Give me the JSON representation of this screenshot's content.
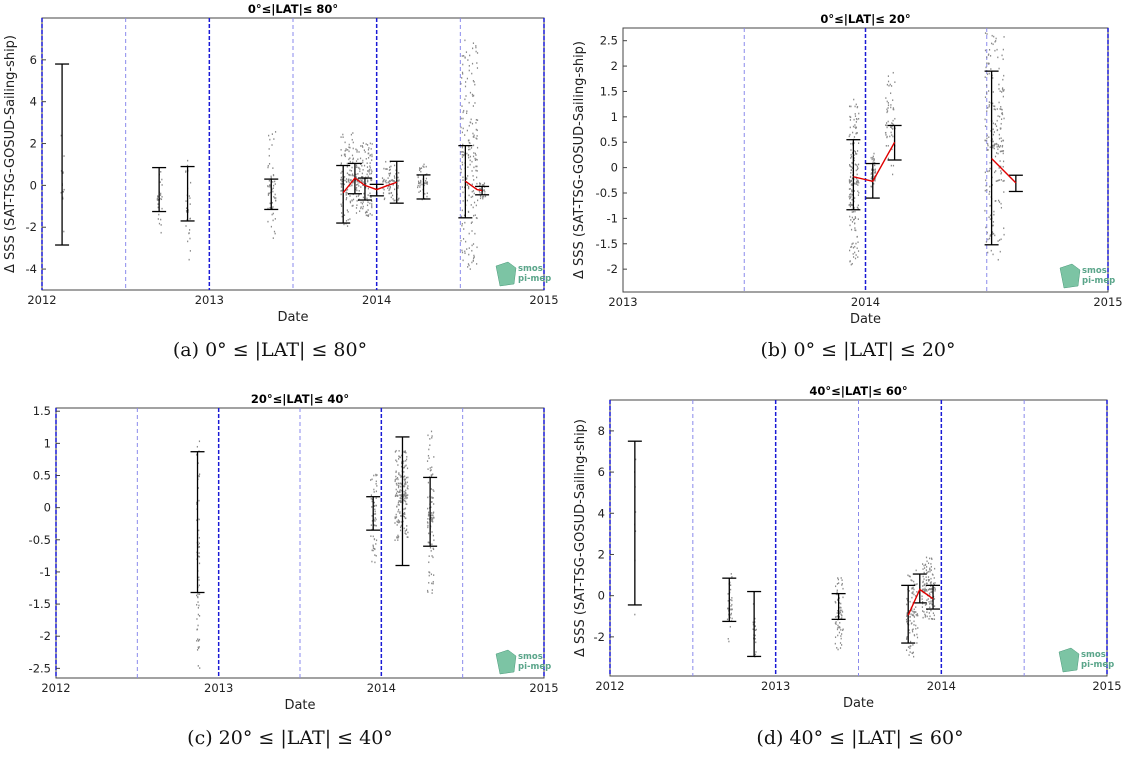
{
  "logo": {
    "line1": "smos",
    "line2": "pi-mep"
  },
  "colors": {
    "errorbar": "#000000",
    "mean_line": "#e00000",
    "year_line": "#1a1ad6",
    "half_year_line": "#8a8aec",
    "scatter": "#8a8a8a",
    "dashed_box": "#3a3ae0"
  },
  "chart_data": [
    {
      "panel": "a",
      "type": "scatter",
      "title": "0°≤|LAT|≤ 80°",
      "caption": "(a) 0° ≤ |LAT| ≤ 80°",
      "xlabel": "Date",
      "ylabel": "Δ SSS (SAT-TSG-GOSUD-Sailing-ship)",
      "xlim": [
        2012.0,
        2015.0
      ],
      "ylim": [
        -5.0,
        8.0
      ],
      "xticks": [
        2012,
        2013,
        2014,
        2015
      ],
      "yticks": [
        -4,
        -2,
        0,
        2,
        4,
        6
      ],
      "year_lines": [
        2013,
        2014,
        2015
      ],
      "half_year_lines": [
        2012.5,
        2013.5,
        2014.5
      ],
      "errorbars": [
        {
          "x": 2012.12,
          "low": -2.85,
          "high": 5.8
        },
        {
          "x": 2012.7,
          "low": -1.25,
          "high": 0.85
        },
        {
          "x": 2012.87,
          "low": -1.7,
          "high": 0.9
        },
        {
          "x": 2013.37,
          "low": -1.15,
          "high": 0.3
        },
        {
          "x": 2013.8,
          "low": -1.8,
          "high": 0.95
        },
        {
          "x": 2013.87,
          "low": -0.4,
          "high": 1.05
        },
        {
          "x": 2013.93,
          "low": -0.7,
          "high": 0.35
        },
        {
          "x": 2014.0,
          "low": -0.5,
          "high": 0.05
        },
        {
          "x": 2014.12,
          "low": -0.85,
          "high": 1.15
        },
        {
          "x": 2014.28,
          "low": -0.65,
          "high": 0.5
        },
        {
          "x": 2014.53,
          "low": -1.55,
          "high": 1.9
        },
        {
          "x": 2014.63,
          "low": -0.45,
          "high": -0.05
        }
      ],
      "mean_line": [
        [
          2013.8,
          -0.35
        ],
        [
          2013.87,
          0.35
        ],
        [
          2013.93,
          0.0
        ],
        [
          2014.0,
          -0.2
        ],
        [
          2014.05,
          -0.05
        ],
        [
          2014.12,
          0.15
        ]
      ],
      "mean_line2": [
        [
          2014.53,
          0.2
        ],
        [
          2014.6,
          -0.2
        ],
        [
          2014.63,
          -0.25
        ]
      ],
      "scatter_clusters": [
        {
          "x": 2012.12,
          "spread": 0.01,
          "low": -2.7,
          "high": 2.9,
          "n": 14
        },
        {
          "x": 2012.7,
          "spread": 0.015,
          "low": -2.3,
          "high": 1.0,
          "n": 30
        },
        {
          "x": 2012.87,
          "spread": 0.015,
          "low": -3.6,
          "high": 1.3,
          "n": 30
        },
        {
          "x": 2013.37,
          "spread": 0.025,
          "low": -2.7,
          "high": 2.8,
          "n": 60
        },
        {
          "x": 2013.82,
          "spread": 0.04,
          "low": -2.0,
          "high": 2.6,
          "n": 120
        },
        {
          "x": 2013.92,
          "spread": 0.05,
          "low": -1.5,
          "high": 2.1,
          "n": 160
        },
        {
          "x": 2014.08,
          "spread": 0.05,
          "low": -0.7,
          "high": 1.2,
          "n": 80
        },
        {
          "x": 2014.27,
          "spread": 0.03,
          "low": -0.8,
          "high": 1.1,
          "n": 50
        },
        {
          "x": 2014.55,
          "spread": 0.05,
          "low": -4.0,
          "high": 7.0,
          "n": 200
        },
        {
          "x": 2014.63,
          "spread": 0.02,
          "low": -0.6,
          "high": 0.3,
          "n": 30
        }
      ]
    },
    {
      "panel": "b",
      "type": "scatter",
      "title": "0°≤|LAT|≤ 20°",
      "caption": "(b) 0° ≤ |LAT| ≤ 20°",
      "xlabel": "Date",
      "ylabel": "Δ SSS (SAT-TSG-GOSUD-Sailing-ship)",
      "xlim": [
        2013.0,
        2015.0
      ],
      "ylim": [
        -2.45,
        2.75
      ],
      "xticks": [
        2013,
        2014,
        2015
      ],
      "yticks": [
        -2,
        -1.5,
        -1,
        -0.5,
        0,
        0.5,
        1,
        1.5,
        2,
        2.5
      ],
      "year_lines": [
        2014,
        2015
      ],
      "half_year_lines": [
        2013.5,
        2014.5
      ],
      "errorbars": [
        {
          "x": 2013.95,
          "low": -0.83,
          "high": 0.55
        },
        {
          "x": 2014.03,
          "low": -0.6,
          "high": 0.08
        },
        {
          "x": 2014.12,
          "low": 0.15,
          "high": 0.83
        },
        {
          "x": 2014.52,
          "low": -1.52,
          "high": 1.9
        },
        {
          "x": 2014.62,
          "low": -0.47,
          "high": -0.15
        }
      ],
      "mean_line": [
        [
          2013.95,
          -0.18
        ],
        [
          2014.03,
          -0.27
        ],
        [
          2014.12,
          0.5
        ]
      ],
      "mean_line2": [
        [
          2014.52,
          0.18
        ],
        [
          2014.62,
          -0.3
        ]
      ],
      "scatter_clusters": [
        {
          "x": 2013.95,
          "spread": 0.02,
          "low": -1.9,
          "high": 1.4,
          "n": 200
        },
        {
          "x": 2014.03,
          "spread": 0.01,
          "low": -0.6,
          "high": 0.3,
          "n": 40
        },
        {
          "x": 2014.1,
          "spread": 0.02,
          "low": -0.2,
          "high": 1.9,
          "n": 60
        },
        {
          "x": 2014.53,
          "spread": 0.04,
          "low": -1.8,
          "high": 2.7,
          "n": 220
        }
      ]
    },
    {
      "panel": "c",
      "type": "scatter",
      "title": "20°≤|LAT|≤ 40°",
      "caption": "(c) 20° ≤ |LAT| ≤ 40°",
      "xlabel": "Date",
      "ylabel": "",
      "xlim": [
        2012.0,
        2015.0
      ],
      "ylim": [
        -2.65,
        1.55
      ],
      "xticks": [
        2012,
        2013,
        2014,
        2015
      ],
      "yticks": [
        -2.5,
        -2,
        -1.5,
        -1,
        -0.5,
        0,
        0.5,
        1,
        1.5
      ],
      "year_lines": [
        2013,
        2014,
        2015
      ],
      "half_year_lines": [
        2012.5,
        2013.5,
        2014.5
      ],
      "errorbars": [
        {
          "x": 2012.87,
          "low": -1.32,
          "high": 0.87
        },
        {
          "x": 2013.95,
          "low": -0.35,
          "high": 0.17
        },
        {
          "x": 2014.13,
          "low": -0.9,
          "high": 1.1
        },
        {
          "x": 2014.3,
          "low": -0.6,
          "high": 0.47
        }
      ],
      "mean_line": [],
      "mean_line2": [],
      "scatter_clusters": [
        {
          "x": 2012.87,
          "spread": 0.01,
          "low": -2.5,
          "high": 1.05,
          "n": 70
        },
        {
          "x": 2013.95,
          "spread": 0.02,
          "low": -0.85,
          "high": 0.6,
          "n": 60
        },
        {
          "x": 2014.12,
          "spread": 0.04,
          "low": -0.5,
          "high": 0.9,
          "n": 200
        },
        {
          "x": 2014.3,
          "spread": 0.02,
          "low": -1.5,
          "high": 1.2,
          "n": 100
        }
      ]
    },
    {
      "panel": "d",
      "type": "scatter",
      "title": "40°≤|LAT|≤ 60°",
      "caption": "(d) 40° ≤ |LAT| ≤ 60°",
      "xlabel": "Date",
      "ylabel": "Δ SSS (SAT-TSG-GOSUD-Sailing-ship)",
      "xlim": [
        2012.0,
        2015.0
      ],
      "ylim": [
        -3.9,
        9.5
      ],
      "xticks": [
        2012,
        2013,
        2014,
        2015
      ],
      "yticks": [
        -2,
        0,
        2,
        4,
        6,
        8
      ],
      "year_lines": [
        2013,
        2014,
        2015
      ],
      "half_year_lines": [
        2012.5,
        2013.5,
        2014.5
      ],
      "errorbars": [
        {
          "x": 2012.15,
          "low": -0.45,
          "high": 7.5
        },
        {
          "x": 2012.72,
          "low": -1.25,
          "high": 0.85
        },
        {
          "x": 2012.87,
          "low": -2.95,
          "high": 0.2
        },
        {
          "x": 2013.38,
          "low": -1.15,
          "high": 0.1
        },
        {
          "x": 2013.8,
          "low": -2.3,
          "high": 0.5
        },
        {
          "x": 2013.87,
          "low": -0.35,
          "high": 1.05
        },
        {
          "x": 2013.95,
          "low": -0.65,
          "high": 0.5
        }
      ],
      "mean_line": [
        [
          2013.8,
          -0.95
        ],
        [
          2013.87,
          0.3
        ],
        [
          2013.95,
          -0.15
        ]
      ],
      "mean_line2": [],
      "scatter_clusters": [
        {
          "x": 2012.15,
          "spread": 0.005,
          "low": -1.1,
          "high": 8.2,
          "n": 8
        },
        {
          "x": 2012.72,
          "spread": 0.015,
          "low": -2.4,
          "high": 1.1,
          "n": 40
        },
        {
          "x": 2012.87,
          "spread": 0.01,
          "low": -3.2,
          "high": 0.3,
          "n": 20
        },
        {
          "x": 2013.38,
          "spread": 0.025,
          "low": -2.6,
          "high": 0.9,
          "n": 70
        },
        {
          "x": 2013.82,
          "spread": 0.035,
          "low": -3.0,
          "high": 1.3,
          "n": 100
        },
        {
          "x": 2013.92,
          "spread": 0.04,
          "low": -1.2,
          "high": 1.9,
          "n": 140
        }
      ]
    }
  ]
}
